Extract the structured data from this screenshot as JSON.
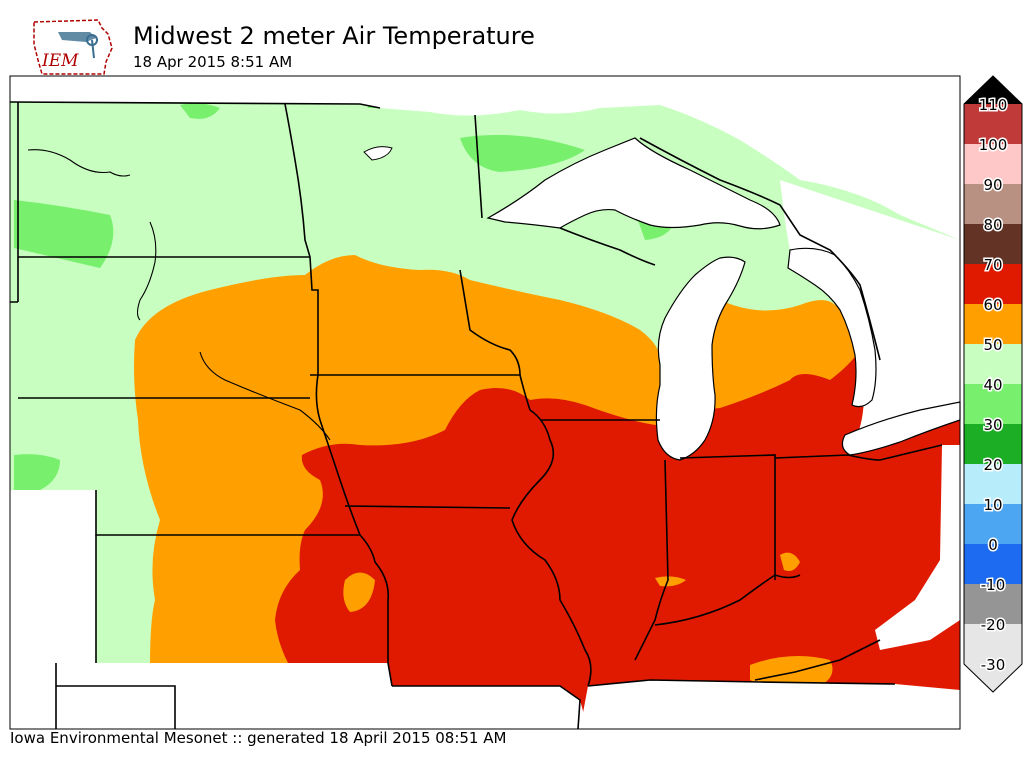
{
  "header": {
    "title": "Midwest 2 meter Air Temperature",
    "subtitle": "18 Apr 2015 8:51 AM",
    "logo_text": "IEM"
  },
  "footer": {
    "text": "Iowa Environmental Mesonet :: generated 18 April 2015 08:51 AM"
  },
  "legend": {
    "bins": [
      {
        "label": "110",
        "color": "#000000"
      },
      {
        "label": "100",
        "color": "#c03a3a"
      },
      {
        "label": "90",
        "color": "#ffc8c8"
      },
      {
        "label": "80",
        "color": "#b99182"
      },
      {
        "label": "70",
        "color": "#633426"
      },
      {
        "label": "60",
        "color": "#e01a00"
      },
      {
        "label": "50",
        "color": "#ffa000"
      },
      {
        "label": "40",
        "color": "#c8ffc0"
      },
      {
        "label": "30",
        "color": "#78f06e"
      },
      {
        "label": "20",
        "color": "#1cae24"
      },
      {
        "label": "10",
        "color": "#b7ecfa"
      },
      {
        "label": "0",
        "color": "#4ca6f2"
      },
      {
        "label": "-10",
        "color": "#1c6bf0"
      },
      {
        "label": "-20",
        "color": "#959595"
      },
      {
        "label": "-30",
        "color": "#e6e6e6"
      }
    ]
  },
  "colors": {
    "band_40_50": "#c8ffc0",
    "band_30_40": "#78f06e",
    "band_50_60": "#ffa000",
    "band_60_70": "#e01a00"
  }
}
